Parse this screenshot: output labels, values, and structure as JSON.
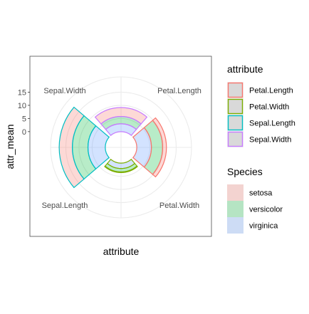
{
  "chart_data": {
    "type": "bar",
    "coord": "polar",
    "xlabel": "attribute",
    "ylabel": "attr_mean",
    "categories": [
      "Petal.Length",
      "Petal.Width",
      "Sepal.Length",
      "Sepal.Width"
    ],
    "angular_labels": [
      "Sepal.Width",
      "Petal.Length",
      "Petal.Width",
      "Sepal.Length"
    ],
    "y_ticks": [
      0,
      5,
      10,
      15
    ],
    "ylim": [
      -6,
      20
    ],
    "stacked": true,
    "series": [
      {
        "name": "setosa",
        "values": [
          1.462,
          0.246,
          5.006,
          3.428
        ]
      },
      {
        "name": "versicolor",
        "values": [
          4.26,
          1.326,
          5.936,
          2.77
        ]
      },
      {
        "name": "virginica",
        "values": [
          5.552,
          2.026,
          6.588,
          2.974
        ]
      }
    ],
    "grid": true,
    "legends": [
      {
        "title": "attribute",
        "items": [
          "Petal.Length",
          "Petal.Width",
          "Sepal.Length",
          "Sepal.Width"
        ],
        "colors": [
          "#F8766D",
          "#7CAE00",
          "#00BFC4",
          "#C77CFF"
        ],
        "kind": "outline"
      },
      {
        "title": "Species",
        "items": [
          "setosa",
          "versicolor",
          "virginica"
        ],
        "colors": [
          "#F8766D",
          "#00BA38",
          "#619CFF"
        ],
        "kind": "fill"
      }
    ],
    "legend_position": "right"
  }
}
